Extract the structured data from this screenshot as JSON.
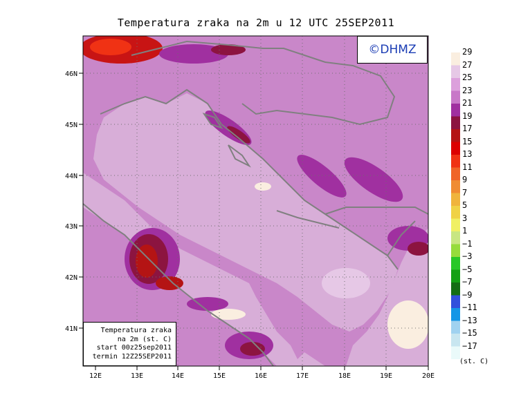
{
  "title": "Temperatura zraka na 2m u 12 UTC 25SEP2011",
  "logo_text": "©DHMZ",
  "info_box": {
    "line1": "Temperatura zraka",
    "line2": "na 2m (st. C)",
    "line3": "start 00z25sep2011",
    "line4": "termin 12Z25SEP2011"
  },
  "lat_ticks": [
    "41N",
    "42N",
    "43N",
    "44N",
    "45N",
    "46N"
  ],
  "lon_ticks": [
    "12E",
    "13E",
    "14E",
    "15E",
    "16E",
    "17E",
    "18E",
    "19E",
    "20E"
  ],
  "legend": {
    "unit": "(st. C)",
    "levels": [
      "29",
      "27",
      "25",
      "23",
      "21",
      "19",
      "17",
      "15",
      "13",
      "11",
      "9",
      "7",
      "5",
      "3",
      "1",
      "−1",
      "−3",
      "−5",
      "−7",
      "−9",
      "−11",
      "−13",
      "−15",
      "−17"
    ],
    "colors": [
      "#faeee0",
      "#e6c8e6",
      "#dca0dc",
      "#c878c8",
      "#a030a0",
      "#8c1440",
      "#b41414",
      "#dc0000",
      "#f03214",
      "#f06428",
      "#f08c32",
      "#f0b43c",
      "#f0d246",
      "#f0f064",
      "#c8e682",
      "#96dc3c",
      "#28c828",
      "#14a014",
      "#146e14",
      "#3250dc",
      "#1496e6",
      "#a0d2f0",
      "#c8e6f0",
      "#eafafa"
    ]
  },
  "colors": {
    "sea": "#d8aed8",
    "land_base": "#c987c9",
    "coast": "#808080"
  }
}
